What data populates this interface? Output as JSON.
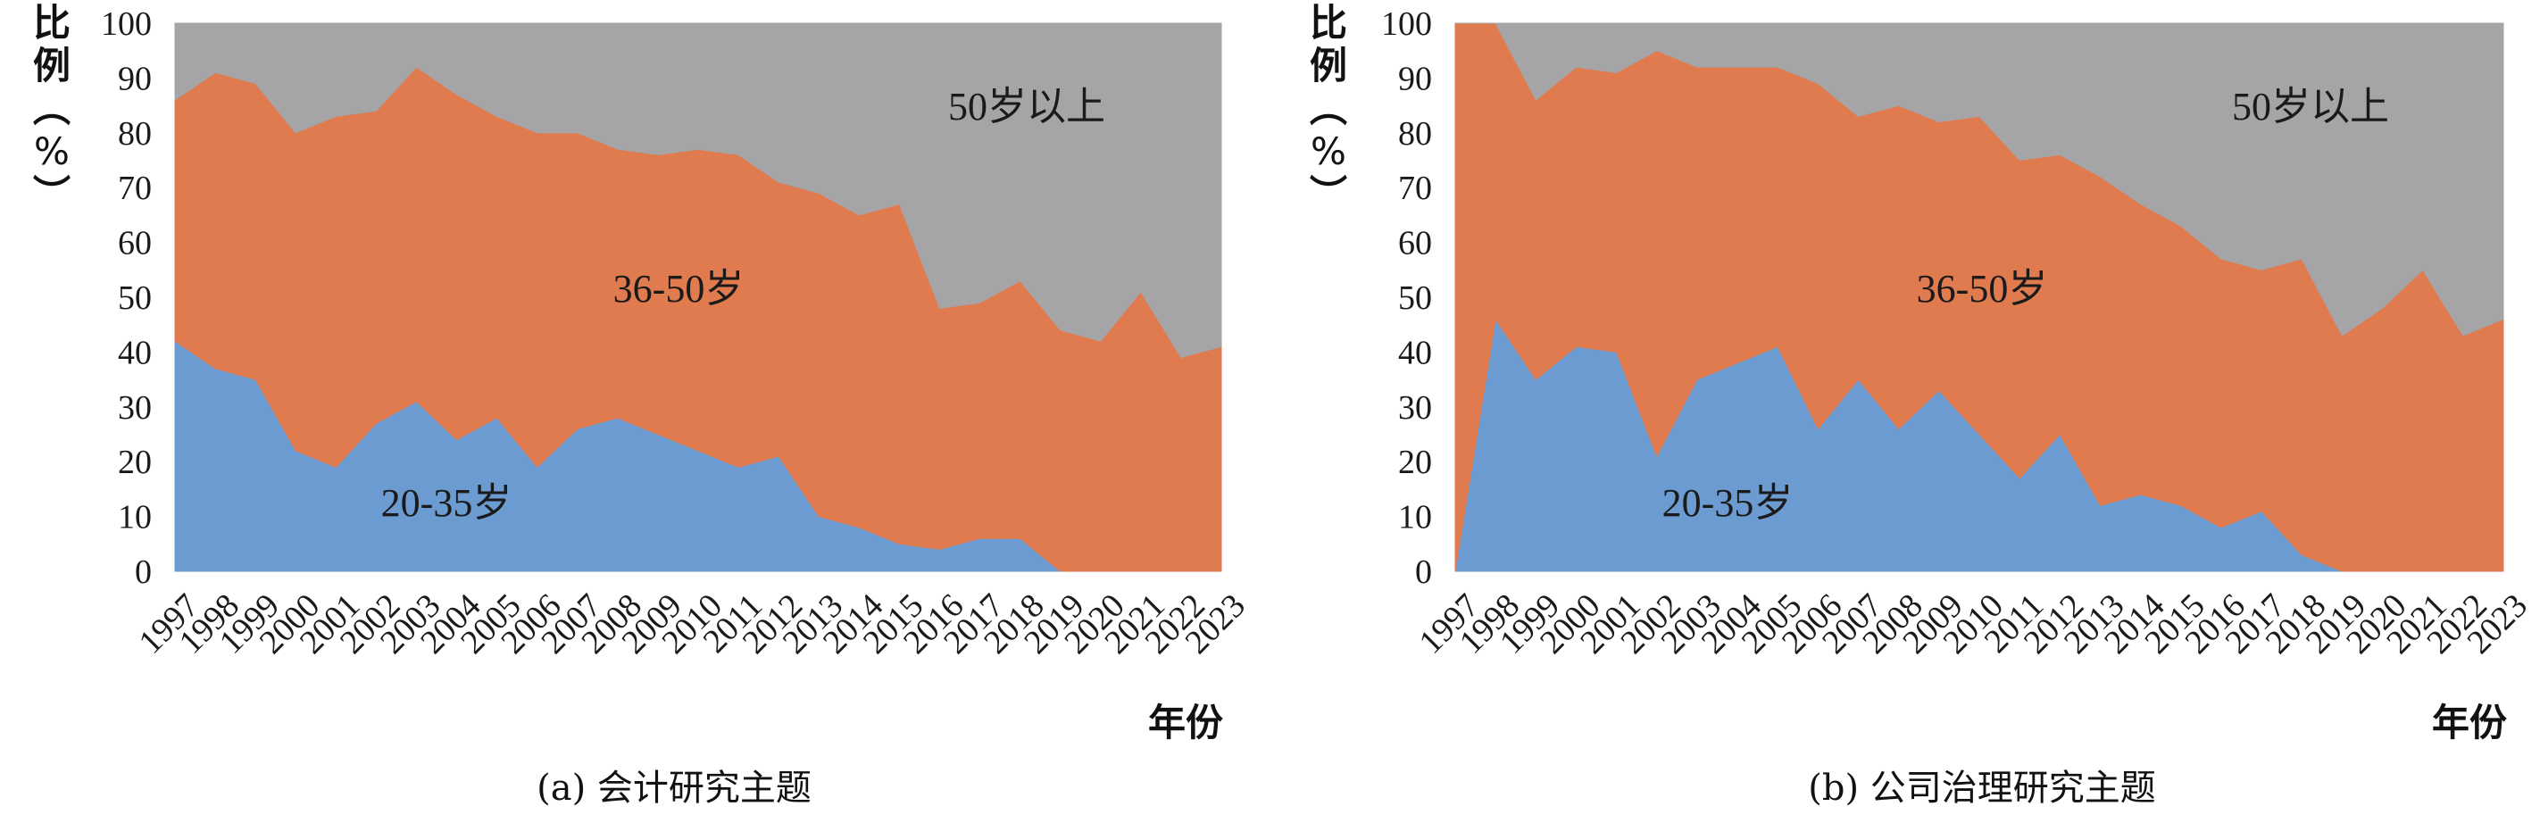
{
  "chart_data": [
    {
      "type": "area",
      "stacked": true,
      "percent": true,
      "caption": "(a) 会计研究主题",
      "xlabel": "年份",
      "ylabel": "比例（%）",
      "ylim": [
        0,
        100
      ],
      "yticks": [
        0,
        10,
        20,
        30,
        40,
        50,
        60,
        70,
        80,
        90,
        100
      ],
      "grid": false,
      "legend": "none",
      "categories": [
        "1997",
        "1998",
        "1999",
        "2000",
        "2001",
        "2002",
        "2003",
        "2004",
        "2005",
        "2006",
        "2007",
        "2008",
        "2009",
        "2010",
        "2011",
        "2012",
        "2013",
        "2014",
        "2015",
        "2016",
        "2017",
        "2018",
        "2019",
        "2020",
        "2021",
        "2022",
        "2023"
      ],
      "series": [
        {
          "name": "20-35岁",
          "color": "#6b9bd1",
          "values": [
            42,
            37,
            35,
            22,
            19,
            27,
            31,
            24,
            28,
            19,
            26,
            28,
            25,
            22,
            19,
            21,
            10,
            8,
            5,
            4,
            6,
            6,
            0,
            0,
            0,
            0,
            0
          ]
        },
        {
          "name": "36-50岁",
          "color": "#e07a4f",
          "values": [
            44,
            54,
            54,
            58,
            64,
            57,
            61,
            63,
            55,
            61,
            54,
            49,
            51,
            55,
            57,
            50,
            59,
            57,
            62,
            44,
            43,
            47,
            44,
            42,
            51,
            39,
            41
          ]
        },
        {
          "name": "50岁以上",
          "color": "#a5a5a7",
          "values": [
            14,
            9,
            11,
            20,
            17,
            16,
            8,
            13,
            17,
            20,
            20,
            23,
            24,
            23,
            24,
            29,
            31,
            35,
            33,
            52,
            51,
            47,
            56,
            58,
            49,
            61,
            59
          ]
        }
      ]
    },
    {
      "type": "area",
      "stacked": true,
      "percent": true,
      "caption": "(b) 公司治理研究主题",
      "xlabel": "年份",
      "ylabel": "比例（%）",
      "ylim": [
        0,
        100
      ],
      "yticks": [
        0,
        10,
        20,
        30,
        40,
        50,
        60,
        70,
        80,
        90,
        100
      ],
      "grid": false,
      "legend": "none",
      "categories": [
        "1997",
        "1998",
        "1999",
        "2000",
        "2001",
        "2002",
        "2003",
        "2004",
        "2005",
        "2006",
        "2007",
        "2008",
        "2009",
        "2010",
        "2011",
        "2012",
        "2013",
        "2014",
        "2015",
        "2016",
        "2017",
        "2018",
        "2019",
        "2020",
        "2021",
        "2022",
        "2023"
      ],
      "series": [
        {
          "name": "20-35岁",
          "color": "#6b9bd1",
          "values": [
            0,
            46,
            35,
            41,
            40,
            21,
            35,
            38,
            41,
            26,
            35,
            26,
            33,
            25,
            17,
            25,
            12,
            14,
            12,
            8,
            11,
            3,
            0,
            0,
            0,
            0,
            0
          ]
        },
        {
          "name": "36-50岁",
          "color": "#e07a4f",
          "values": [
            100,
            54,
            51,
            51,
            51,
            74,
            57,
            54,
            51,
            63,
            48,
            59,
            49,
            58,
            58,
            51,
            60,
            53,
            51,
            49,
            44,
            54,
            43,
            48,
            55,
            43,
            46
          ]
        },
        {
          "name": "50岁以上",
          "color": "#a5a5a7",
          "values": [
            0,
            0,
            14,
            8,
            9,
            5,
            8,
            8,
            8,
            11,
            17,
            15,
            18,
            17,
            25,
            24,
            28,
            33,
            37,
            43,
            45,
            43,
            57,
            52,
            45,
            57,
            54
          ]
        }
      ]
    }
  ]
}
